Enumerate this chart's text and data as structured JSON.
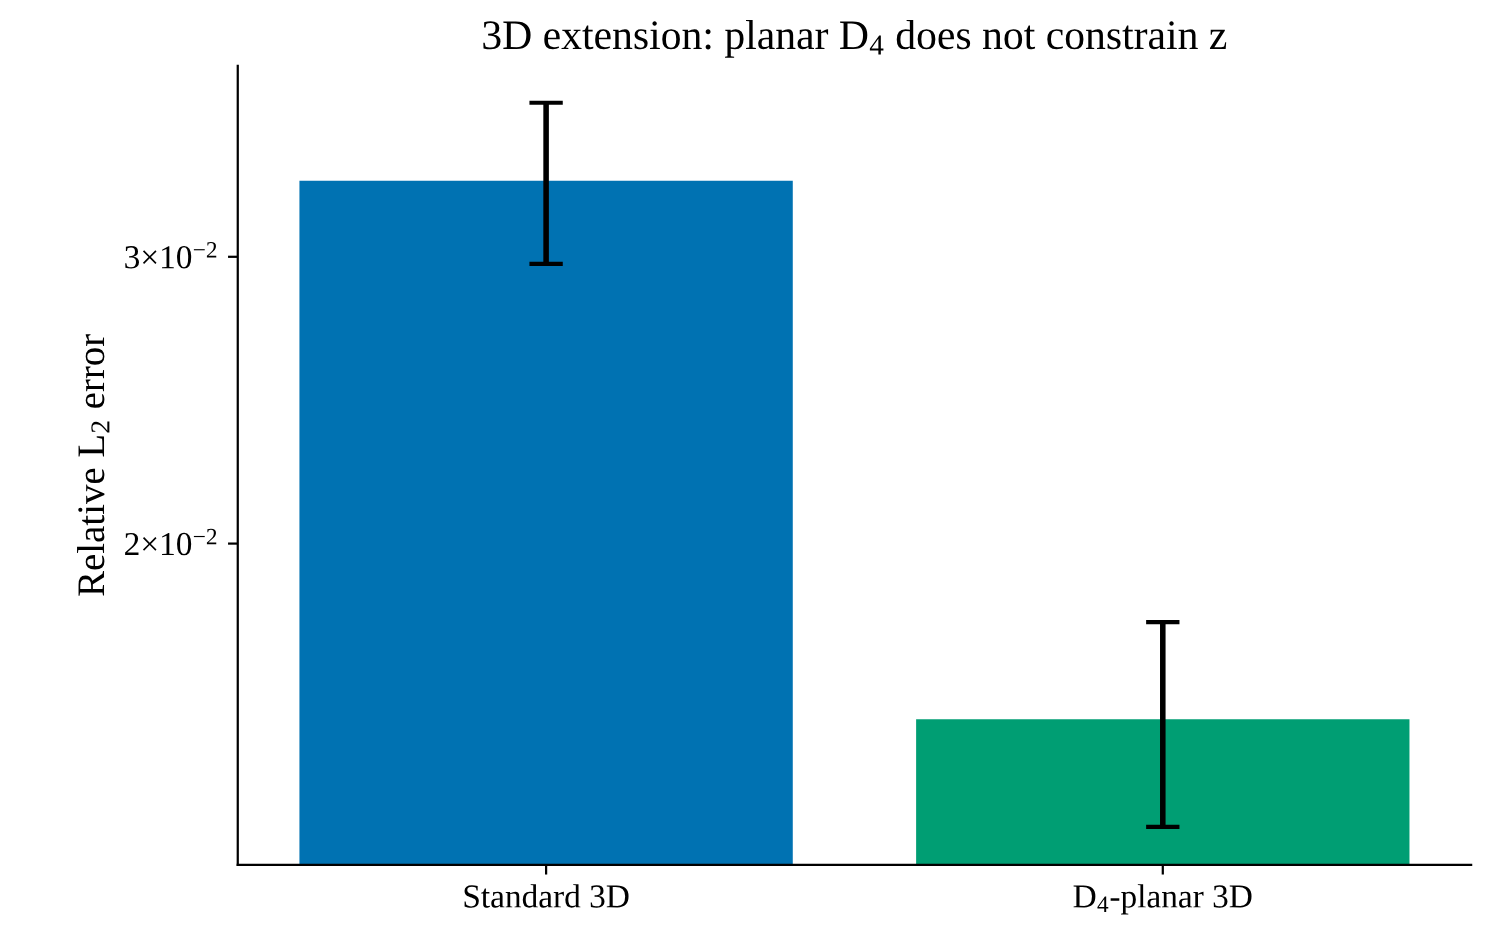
{
  "chart_data": {
    "type": "bar",
    "title": "3D extension: planar D$_{4}$ does not constrain z",
    "ylabel": "Relative L$_{2}$ error",
    "categories": [
      "Standard 3D",
      "D$_{4}$-planar 3D"
    ],
    "values": [
      0.0334,
      0.0156
    ],
    "colors": [
      "#0072b2",
      "#009e73"
    ],
    "errors": [
      [
        0.0297,
        0.0373
      ],
      [
        0.0134,
        0.0179
      ]
    ],
    "log": true,
    "ylim": [
      0.0127,
      0.0393
    ],
    "yticks": [
      {
        "value": 0.02,
        "label": "2×10$^{−2}$"
      },
      {
        "value": 0.03,
        "label": "3×10$^{−2}$"
      }
    ],
    "grid": false,
    "legend": false
  }
}
